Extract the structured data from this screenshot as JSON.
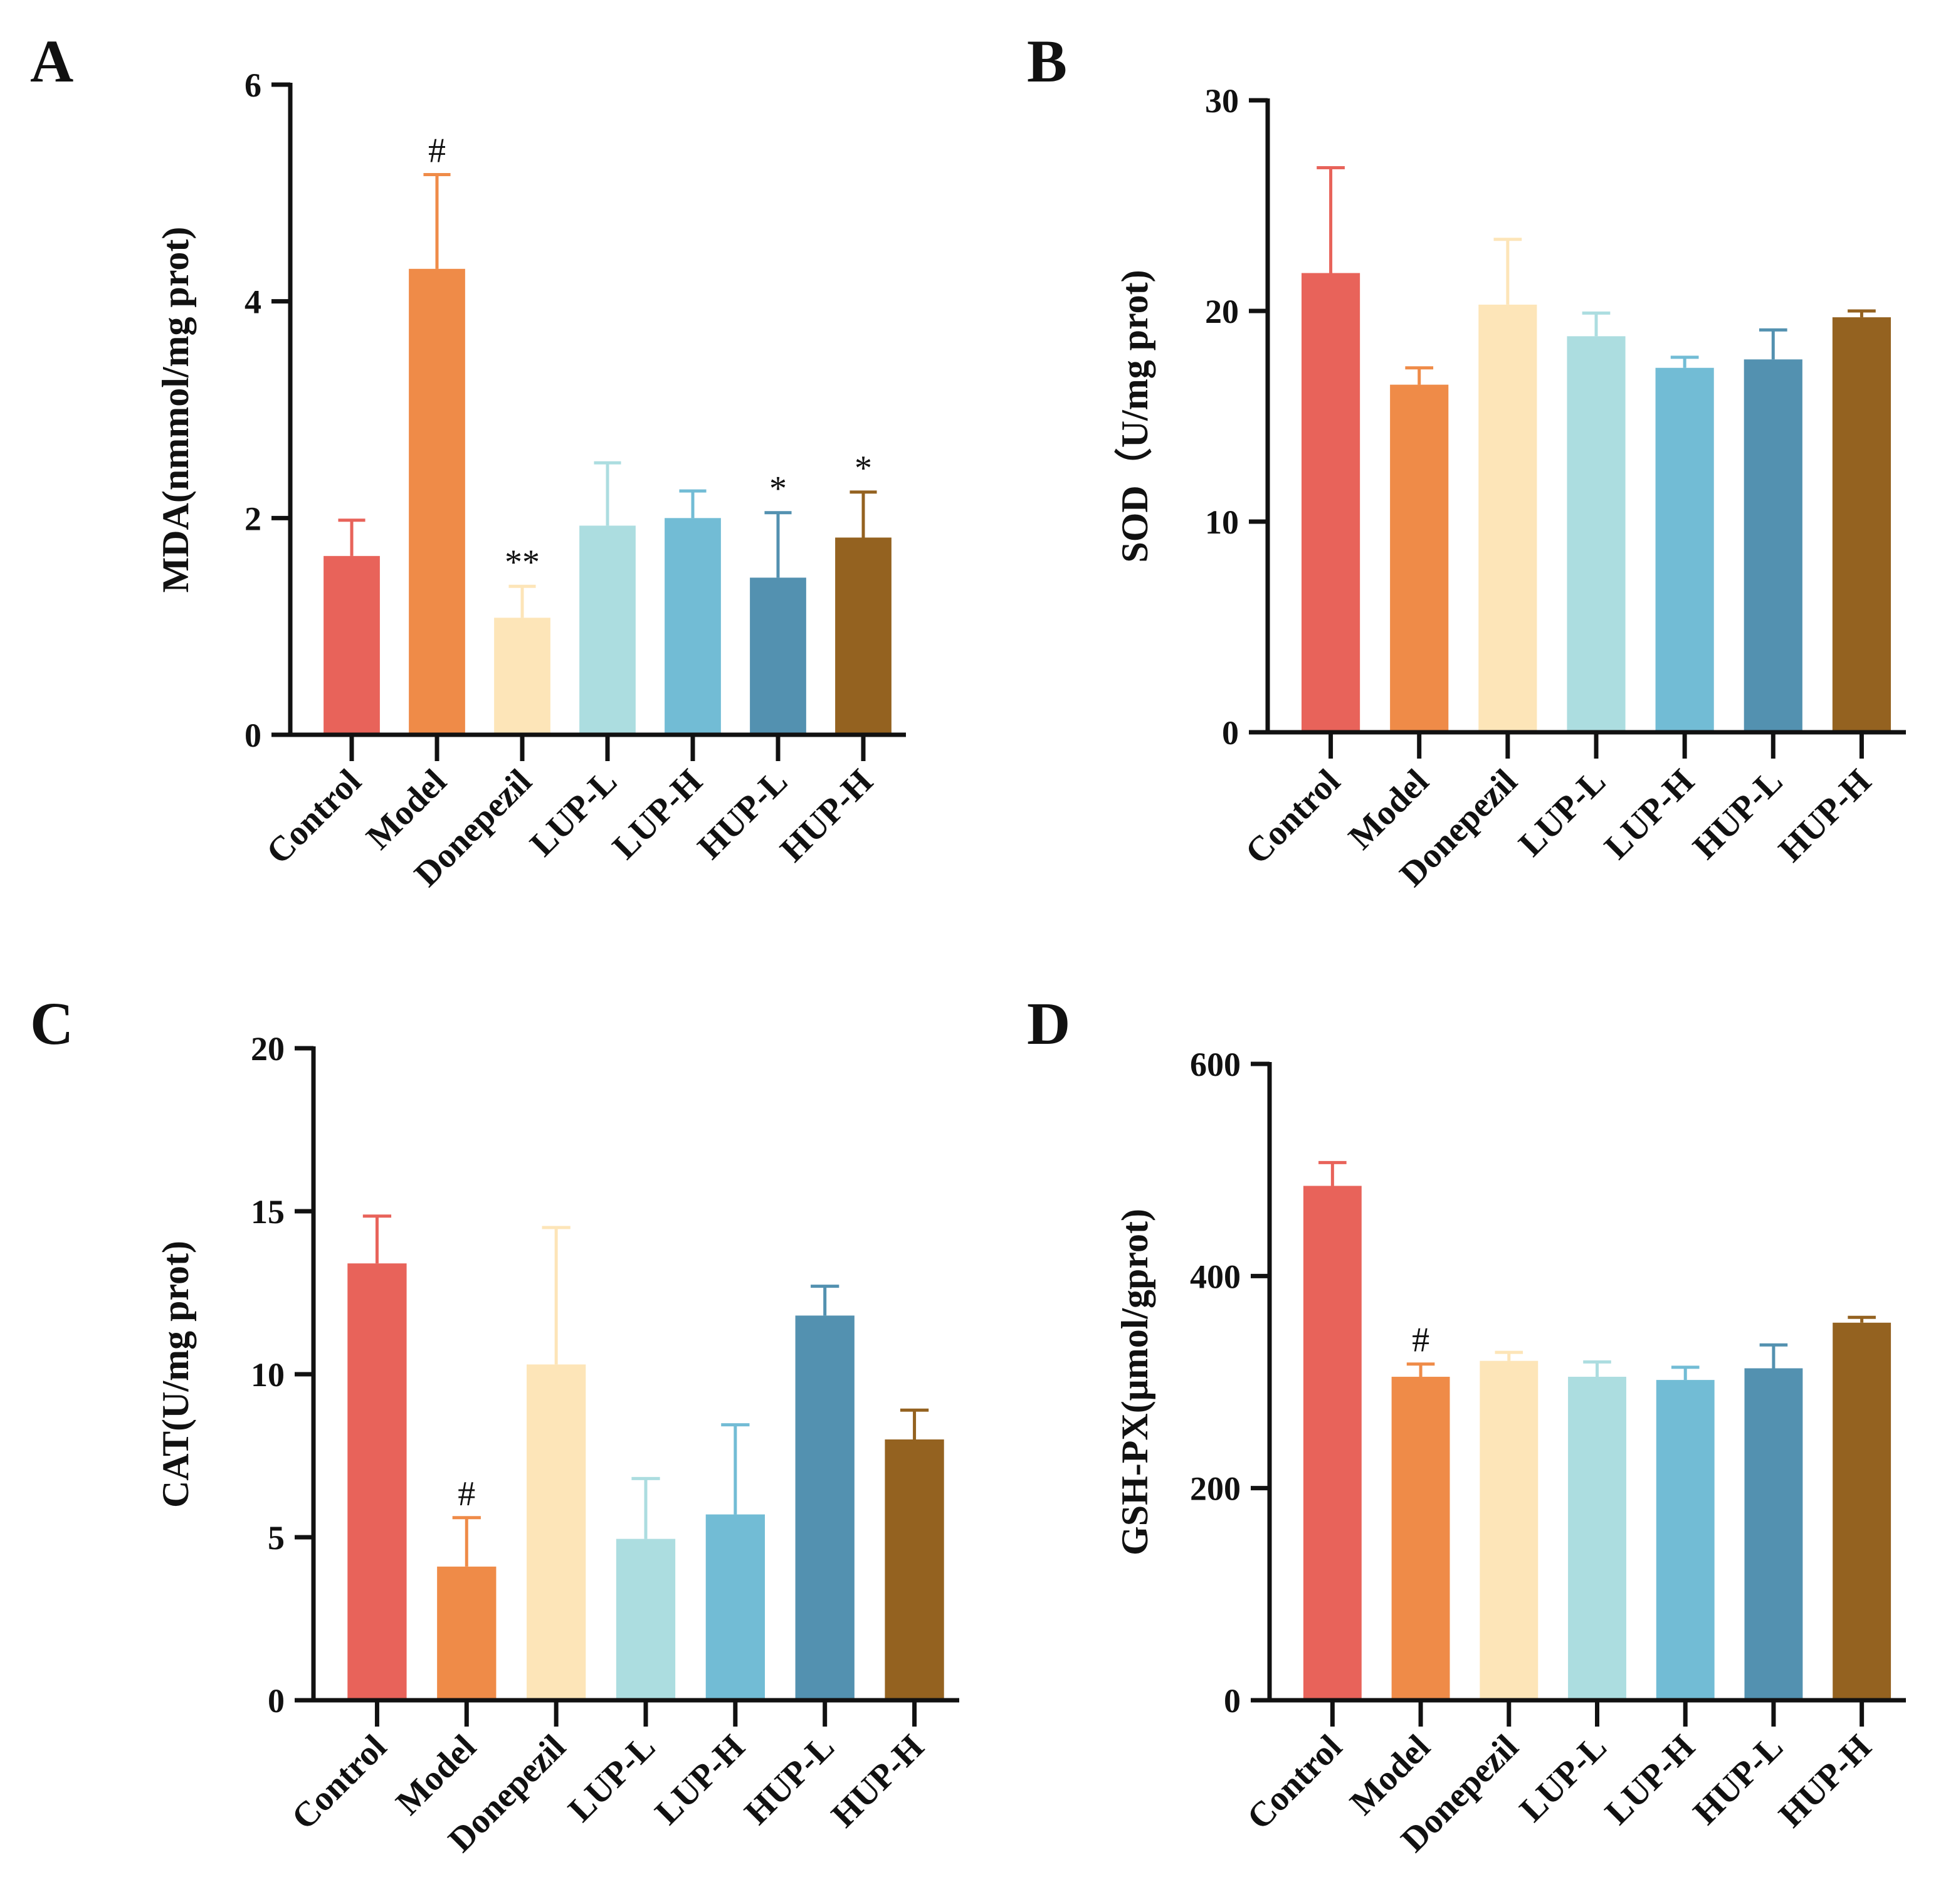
{
  "figure": {
    "panels": [
      "A",
      "B",
      "C",
      "D"
    ]
  },
  "colors": {
    "axis": "#111111",
    "groups": [
      "#e8635a",
      "#ef8b48",
      "#fde5b8",
      "#acdde0",
      "#72bcd5",
      "#5391b0",
      "#946220"
    ]
  },
  "chart_data": [
    {
      "panel": "A",
      "type": "bar",
      "title": "",
      "ylabel": "MDA(nmmol/mg  prot)",
      "xlabel": "",
      "categories": [
        "Control",
        "Model",
        "Donepezil",
        "LUP-L",
        "LUP-H",
        "HUP-L",
        "HUP-H"
      ],
      "values": [
        1.65,
        4.3,
        1.08,
        1.93,
        2.0,
        1.45,
        1.82
      ],
      "errors": [
        0.33,
        0.87,
        0.29,
        0.58,
        0.25,
        0.6,
        0.42
      ],
      "significance": [
        "",
        "#",
        "**",
        "",
        "",
        "*",
        "*"
      ],
      "ylim": [
        0,
        6
      ],
      "yticks": [
        0,
        2,
        4,
        6
      ],
      "ytick_labels": [
        "0",
        "2",
        "4",
        "6"
      ],
      "grid": false,
      "legend": "none"
    },
    {
      "panel": "B",
      "type": "bar",
      "title": "",
      "ylabel": "SOD（U/mg prot)",
      "xlabel": "",
      "categories": [
        "Control",
        "Model",
        "Donepezil",
        "LUP-L",
        "LUP-H",
        "HUP-L",
        "HUP-H"
      ],
      "values": [
        21.8,
        16.5,
        20.3,
        18.8,
        17.3,
        17.7,
        19.7
      ],
      "errors": [
        5.0,
        0.8,
        3.1,
        1.1,
        0.5,
        1.4,
        0.3
      ],
      "significance": [
        "",
        "",
        "",
        "",
        "",
        "",
        ""
      ],
      "ylim": [
        0,
        30
      ],
      "yticks": [
        0,
        10,
        20,
        30
      ],
      "ytick_labels": [
        "0",
        "10",
        "20",
        "30"
      ],
      "grid": false,
      "legend": "none"
    },
    {
      "panel": "C",
      "type": "bar",
      "title": "",
      "ylabel": "CAT(U/mg prot)",
      "xlabel": "",
      "categories": [
        "Control",
        "Model",
        "Donepezil",
        "LUP-L",
        "LUP-H",
        "HUP-L",
        "HUP-H"
      ],
      "values": [
        13.4,
        4.1,
        10.3,
        4.95,
        5.7,
        11.8,
        8.0
      ],
      "errors": [
        1.45,
        1.5,
        4.2,
        1.85,
        2.75,
        0.9,
        0.9
      ],
      "significance": [
        "",
        "#",
        "",
        "",
        "",
        "",
        ""
      ],
      "ylim": [
        0,
        20
      ],
      "yticks": [
        0,
        5,
        10,
        15,
        20
      ],
      "ytick_labels": [
        "0",
        "5",
        "10",
        "15",
        "20"
      ],
      "grid": false,
      "legend": "none"
    },
    {
      "panel": "D",
      "type": "bar",
      "title": "",
      "ylabel": "GSH-PX(μmol/gprot)",
      "xlabel": "",
      "categories": [
        "Control",
        "Model",
        "Donepezil",
        "LUP-L",
        "LUP-H",
        "HUP-L",
        "HUP-H"
      ],
      "values": [
        485,
        305,
        320,
        305,
        302,
        313,
        356
      ],
      "errors": [
        22,
        12,
        8,
        14,
        12,
        22,
        5
      ],
      "significance": [
        "",
        "#",
        "",
        "",
        "",
        "",
        ""
      ],
      "ylim": [
        0,
        600
      ],
      "yticks": [
        0,
        200,
        400,
        600
      ],
      "ytick_labels": [
        "0",
        "200",
        "400",
        "600"
      ],
      "grid": false,
      "legend": "none"
    }
  ]
}
